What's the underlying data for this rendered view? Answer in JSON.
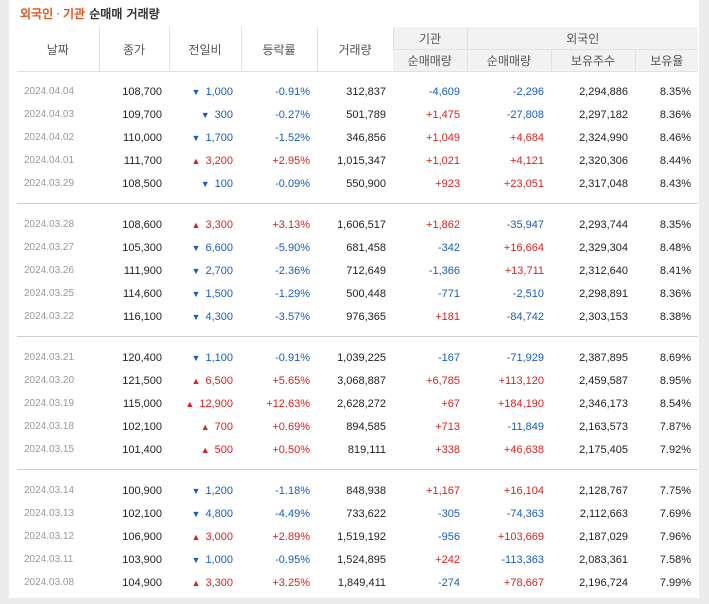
{
  "title": {
    "foreign": "외국인",
    "sep": "·",
    "inst": "기관",
    "rest": "순매매 거래량"
  },
  "headers": {
    "date": "날짜",
    "close": "종가",
    "change": "전일비",
    "rate": "등락률",
    "volume": "거래량",
    "inst_group": "기관",
    "inst_net": "순매매량",
    "foreign_group": "외국인",
    "foreign_net": "순매매량",
    "foreign_hold": "보유주수",
    "foreign_ratio": "보유율"
  },
  "colors": {
    "up": "#dd1f1f",
    "down": "#1a5bc4",
    "title_accent": "#e4541e"
  },
  "groups": [
    [
      {
        "date": "2024.04.04",
        "close": "108,700",
        "dir": "down",
        "change": "1,000",
        "rate": "-0.91%",
        "volume": "312,837",
        "inst": "-4,609",
        "foreign": "-2,296",
        "hold": "2,294,886",
        "ratio": "8.35%"
      },
      {
        "date": "2024.04.03",
        "close": "109,700",
        "dir": "down",
        "change": "300",
        "rate": "-0.27%",
        "volume": "501,789",
        "inst": "+1,475",
        "foreign": "-27,808",
        "hold": "2,297,182",
        "ratio": "8.36%"
      },
      {
        "date": "2024.04.02",
        "close": "110,000",
        "dir": "down",
        "change": "1,700",
        "rate": "-1.52%",
        "volume": "346,856",
        "inst": "+1,049",
        "foreign": "+4,684",
        "hold": "2,324,990",
        "ratio": "8.46%"
      },
      {
        "date": "2024.04.01",
        "close": "111,700",
        "dir": "up",
        "change": "3,200",
        "rate": "+2.95%",
        "volume": "1,015,347",
        "inst": "+1,021",
        "foreign": "+4,121",
        "hold": "2,320,306",
        "ratio": "8.44%"
      },
      {
        "date": "2024.03.29",
        "close": "108,500",
        "dir": "down",
        "change": "100",
        "rate": "-0.09%",
        "volume": "550,900",
        "inst": "+923",
        "foreign": "+23,051",
        "hold": "2,317,048",
        "ratio": "8.43%"
      }
    ],
    [
      {
        "date": "2024.03.28",
        "close": "108,600",
        "dir": "up",
        "change": "3,300",
        "rate": "+3.13%",
        "volume": "1,606,517",
        "inst": "+1,862",
        "foreign": "-35,947",
        "hold": "2,293,744",
        "ratio": "8.35%"
      },
      {
        "date": "2024.03.27",
        "close": "105,300",
        "dir": "down",
        "change": "6,600",
        "rate": "-5.90%",
        "volume": "681,458",
        "inst": "-342",
        "foreign": "+16,664",
        "hold": "2,329,304",
        "ratio": "8.48%"
      },
      {
        "date": "2024.03.26",
        "close": "111,900",
        "dir": "down",
        "change": "2,700",
        "rate": "-2.36%",
        "volume": "712,649",
        "inst": "-1,366",
        "foreign": "+13,711",
        "hold": "2,312,640",
        "ratio": "8.41%"
      },
      {
        "date": "2024.03.25",
        "close": "114,600",
        "dir": "down",
        "change": "1,500",
        "rate": "-1.29%",
        "volume": "500,448",
        "inst": "-771",
        "foreign": "-2,510",
        "hold": "2,298,891",
        "ratio": "8.36%"
      },
      {
        "date": "2024.03.22",
        "close": "116,100",
        "dir": "down",
        "change": "4,300",
        "rate": "-3.57%",
        "volume": "976,365",
        "inst": "+181",
        "foreign": "-84,742",
        "hold": "2,303,153",
        "ratio": "8.38%"
      }
    ],
    [
      {
        "date": "2024.03.21",
        "close": "120,400",
        "dir": "down",
        "change": "1,100",
        "rate": "-0.91%",
        "volume": "1,039,225",
        "inst": "-167",
        "foreign": "-71,929",
        "hold": "2,387,895",
        "ratio": "8.69%"
      },
      {
        "date": "2024.03.20",
        "close": "121,500",
        "dir": "up",
        "change": "6,500",
        "rate": "+5.65%",
        "volume": "3,068,887",
        "inst": "+6,785",
        "foreign": "+113,120",
        "hold": "2,459,587",
        "ratio": "8.95%"
      },
      {
        "date": "2024.03.19",
        "close": "115,000",
        "dir": "up",
        "change": "12,900",
        "rate": "+12.63%",
        "volume": "2,628,272",
        "inst": "+67",
        "foreign": "+184,190",
        "hold": "2,346,173",
        "ratio": "8.54%"
      },
      {
        "date": "2024.03.18",
        "close": "102,100",
        "dir": "up",
        "change": "700",
        "rate": "+0.69%",
        "volume": "894,585",
        "inst": "+713",
        "foreign": "-11,849",
        "hold": "2,163,573",
        "ratio": "7.87%"
      },
      {
        "date": "2024.03.15",
        "close": "101,400",
        "dir": "up",
        "change": "500",
        "rate": "+0.50%",
        "volume": "819,111",
        "inst": "+338",
        "foreign": "+46,638",
        "hold": "2,175,405",
        "ratio": "7.92%"
      }
    ],
    [
      {
        "date": "2024.03.14",
        "close": "100,900",
        "dir": "down",
        "change": "1,200",
        "rate": "-1.18%",
        "volume": "848,938",
        "inst": "+1,167",
        "foreign": "+16,104",
        "hold": "2,128,767",
        "ratio": "7.75%"
      },
      {
        "date": "2024.03.13",
        "close": "102,100",
        "dir": "down",
        "change": "4,800",
        "rate": "-4.49%",
        "volume": "733,622",
        "inst": "-305",
        "foreign": "-74,363",
        "hold": "2,112,663",
        "ratio": "7.69%"
      },
      {
        "date": "2024.03.12",
        "close": "106,900",
        "dir": "up",
        "change": "3,000",
        "rate": "+2.89%",
        "volume": "1,519,192",
        "inst": "-956",
        "foreign": "+103,669",
        "hold": "2,187,029",
        "ratio": "7.96%"
      },
      {
        "date": "2024.03.11",
        "close": "103,900",
        "dir": "down",
        "change": "1,000",
        "rate": "-0.95%",
        "volume": "1,524,895",
        "inst": "+242",
        "foreign": "-113,363",
        "hold": "2,083,361",
        "ratio": "7.58%"
      },
      {
        "date": "2024.03.08",
        "close": "104,900",
        "dir": "up",
        "change": "3,300",
        "rate": "+3.25%",
        "volume": "1,849,411",
        "inst": "-274",
        "foreign": "+78,667",
        "hold": "2,196,724",
        "ratio": "7.99%"
      }
    ]
  ]
}
